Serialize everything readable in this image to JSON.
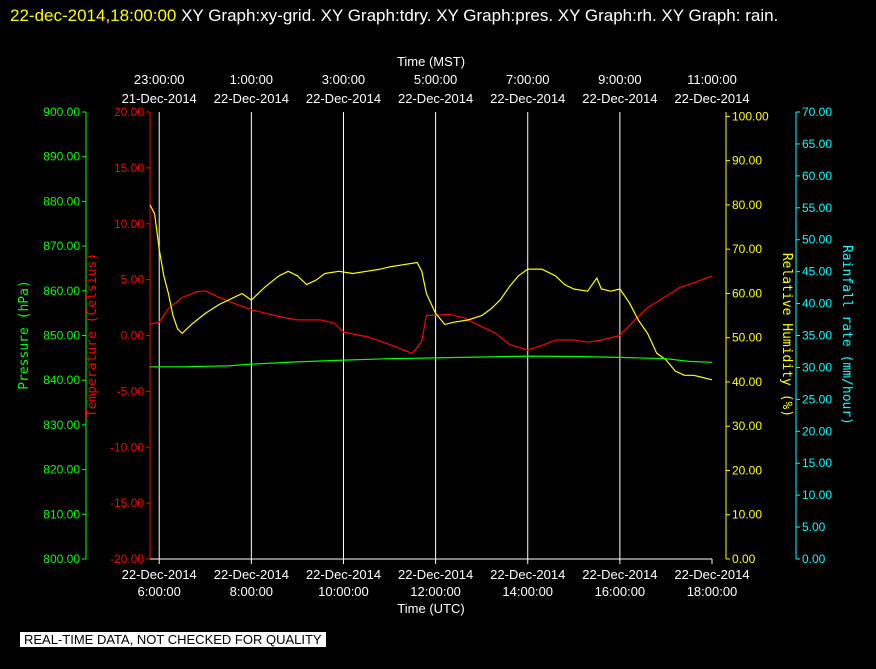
{
  "header": {
    "timestamp": "22-dec-2014,18:00:00",
    "title": "XY Graph:xy-grid.  XY Graph:tdry.  XY Graph:pres.  XY Graph:rh.  XY Graph: rain."
  },
  "quality_note": "REAL-TIME DATA, NOT CHECKED FOR QUALITY",
  "colors": {
    "background": "#000000",
    "grid": "#ffffff",
    "pressure": "#00ff00",
    "temperature": "#ff0000",
    "humidity": "#ffff00",
    "rain": "#00ffff"
  },
  "chart_data": {
    "type": "line",
    "x_bottom": {
      "label": "Time (UTC)",
      "range_hours": [
        5.8,
        18.0
      ],
      "ticks": [
        {
          "hour": 6,
          "date": "22-Dec-2014",
          "time": "6:00:00"
        },
        {
          "hour": 8,
          "date": "22-Dec-2014",
          "time": "8:00:00"
        },
        {
          "hour": 10,
          "date": "22-Dec-2014",
          "time": "10:00:00"
        },
        {
          "hour": 12,
          "date": "22-Dec-2014",
          "time": "12:00:00"
        },
        {
          "hour": 14,
          "date": "22-Dec-2014",
          "time": "14:00:00"
        },
        {
          "hour": 16,
          "date": "22-Dec-2014",
          "time": "16:00:00"
        },
        {
          "hour": 18,
          "date": "22-Dec-2014",
          "time": "18:00:00"
        }
      ]
    },
    "x_top": {
      "label": "Time (MST)",
      "ticks": [
        {
          "hour": 6,
          "time": "23:00:00",
          "date": "21-Dec-2014"
        },
        {
          "hour": 8,
          "time": "1:00:00",
          "date": "22-Dec-2014"
        },
        {
          "hour": 10,
          "time": "3:00:00",
          "date": "22-Dec-2014"
        },
        {
          "hour": 12,
          "time": "5:00:00",
          "date": "22-Dec-2014"
        },
        {
          "hour": 14,
          "time": "7:00:00",
          "date": "22-Dec-2014"
        },
        {
          "hour": 16,
          "time": "9:00:00",
          "date": "22-Dec-2014"
        },
        {
          "hour": 18,
          "time": "11:00:00",
          "date": "22-Dec-2014"
        }
      ]
    },
    "grid": true,
    "axes": [
      {
        "key": "pressure",
        "label": "Pressure (hPa)",
        "range": [
          800,
          900
        ],
        "ticks": [
          "800.00",
          "810.00",
          "820.00",
          "830.00",
          "840.00",
          "850.00",
          "860.00",
          "870.00",
          "880.00",
          "890.00",
          "900.00"
        ]
      },
      {
        "key": "temperature",
        "label": "Temperature (Celsius)",
        "range": [
          -20,
          20
        ],
        "ticks": [
          "-20.00",
          "-15.00",
          "-10.00",
          "-5.00",
          "0.00",
          "5.00",
          "10.00",
          "15.00",
          "20.00"
        ]
      },
      {
        "key": "humidity",
        "label": "Relative Humidity (%)",
        "range": [
          0,
          101
        ],
        "ticks": [
          "0.00",
          "10.00",
          "20.00",
          "30.00",
          "40.00",
          "50.00",
          "60.00",
          "70.00",
          "80.00",
          "90.00",
          "100.00"
        ]
      },
      {
        "key": "rain",
        "label": "Rainfall rate (mm/hour)",
        "range": [
          0,
          70
        ],
        "ticks": [
          "0.00",
          "5.00",
          "10.00",
          "15.00",
          "20.00",
          "25.00",
          "30.00",
          "35.00",
          "40.00",
          "45.00",
          "50.00",
          "55.00",
          "60.00",
          "65.00",
          "70.00"
        ]
      }
    ],
    "series": [
      {
        "key": "temperature",
        "axis": "temperature",
        "points": [
          [
            5.8,
            1.0
          ],
          [
            6.0,
            1.2
          ],
          [
            6.2,
            2.4
          ],
          [
            6.5,
            3.4
          ],
          [
            6.8,
            3.9
          ],
          [
            7.0,
            4.0
          ],
          [
            7.2,
            3.6
          ],
          [
            7.5,
            3.1
          ],
          [
            7.8,
            2.6
          ],
          [
            8.0,
            2.3
          ],
          [
            8.3,
            2.0
          ],
          [
            8.6,
            1.7
          ],
          [
            9.0,
            1.4
          ],
          [
            9.5,
            1.4
          ],
          [
            9.8,
            1.1
          ],
          [
            10.0,
            0.3
          ],
          [
            10.5,
            -0.1
          ],
          [
            10.8,
            -0.5
          ],
          [
            11.0,
            -0.8
          ],
          [
            11.3,
            -1.3
          ],
          [
            11.5,
            -1.6
          ],
          [
            11.7,
            -0.5
          ],
          [
            11.8,
            1.8
          ],
          [
            12.0,
            1.8
          ],
          [
            12.3,
            1.9
          ],
          [
            12.6,
            1.6
          ],
          [
            13.0,
            0.8
          ],
          [
            13.3,
            0.2
          ],
          [
            13.6,
            -0.8
          ],
          [
            14.0,
            -1.3
          ],
          [
            14.3,
            -0.9
          ],
          [
            14.6,
            -0.4
          ],
          [
            15.0,
            -0.4
          ],
          [
            15.3,
            -0.6
          ],
          [
            15.6,
            -0.4
          ],
          [
            16.0,
            0.0
          ],
          [
            16.3,
            1.3
          ],
          [
            16.6,
            2.5
          ],
          [
            17.0,
            3.5
          ],
          [
            17.3,
            4.3
          ],
          [
            17.6,
            4.7
          ],
          [
            17.9,
            5.2
          ],
          [
            18.0,
            5.3
          ]
        ]
      },
      {
        "key": "humidity",
        "axis": "humidity",
        "points": [
          [
            5.8,
            80.0
          ],
          [
            5.9,
            78.0
          ],
          [
            6.0,
            70.0
          ],
          [
            6.1,
            64.0
          ],
          [
            6.2,
            60.0
          ],
          [
            6.3,
            55.0
          ],
          [
            6.4,
            52.0
          ],
          [
            6.5,
            51.0
          ],
          [
            6.7,
            53.0
          ],
          [
            7.0,
            55.5
          ],
          [
            7.3,
            57.5
          ],
          [
            7.6,
            59.0
          ],
          [
            7.8,
            60.0
          ],
          [
            8.0,
            58.5
          ],
          [
            8.3,
            61.5
          ],
          [
            8.6,
            64.0
          ],
          [
            8.8,
            65.0
          ],
          [
            9.0,
            64.0
          ],
          [
            9.2,
            62.0
          ],
          [
            9.4,
            63.0
          ],
          [
            9.6,
            64.5
          ],
          [
            9.9,
            65.0
          ],
          [
            10.2,
            64.5
          ],
          [
            10.5,
            65.0
          ],
          [
            10.8,
            65.5
          ],
          [
            11.0,
            66.0
          ],
          [
            11.3,
            66.5
          ],
          [
            11.6,
            67.0
          ],
          [
            11.7,
            65.0
          ],
          [
            11.8,
            60.0
          ],
          [
            12.0,
            55.5
          ],
          [
            12.2,
            53.0
          ],
          [
            12.4,
            53.5
          ],
          [
            12.7,
            54.0
          ],
          [
            13.0,
            55.0
          ],
          [
            13.2,
            56.5
          ],
          [
            13.4,
            58.5
          ],
          [
            13.6,
            61.5
          ],
          [
            13.8,
            64.0
          ],
          [
            14.0,
            65.5
          ],
          [
            14.3,
            65.5
          ],
          [
            14.6,
            64.0
          ],
          [
            14.8,
            62.0
          ],
          [
            15.0,
            61.0
          ],
          [
            15.3,
            60.5
          ],
          [
            15.5,
            63.5
          ],
          [
            15.6,
            61.0
          ],
          [
            15.8,
            60.5
          ],
          [
            16.0,
            61.0
          ],
          [
            16.2,
            58.0
          ],
          [
            16.4,
            54.0
          ],
          [
            16.6,
            51.0
          ],
          [
            16.8,
            46.5
          ],
          [
            17.0,
            45.0
          ],
          [
            17.2,
            42.5
          ],
          [
            17.4,
            41.5
          ],
          [
            17.6,
            41.5
          ],
          [
            17.8,
            41.0
          ],
          [
            18.0,
            40.5
          ]
        ]
      },
      {
        "key": "pressure",
        "axis": "pressure",
        "points": [
          [
            5.8,
            843.0
          ],
          [
            6.5,
            843.0
          ],
          [
            7.0,
            843.1
          ],
          [
            7.5,
            843.2
          ],
          [
            8.0,
            843.6
          ],
          [
            9.0,
            844.1
          ],
          [
            10.0,
            844.5
          ],
          [
            11.0,
            844.8
          ],
          [
            12.0,
            845.0
          ],
          [
            13.0,
            845.2
          ],
          [
            14.0,
            845.4
          ],
          [
            15.0,
            845.3
          ],
          [
            16.0,
            845.1
          ],
          [
            17.0,
            844.8
          ],
          [
            17.5,
            844.2
          ],
          [
            18.0,
            844.0
          ]
        ]
      }
    ]
  }
}
